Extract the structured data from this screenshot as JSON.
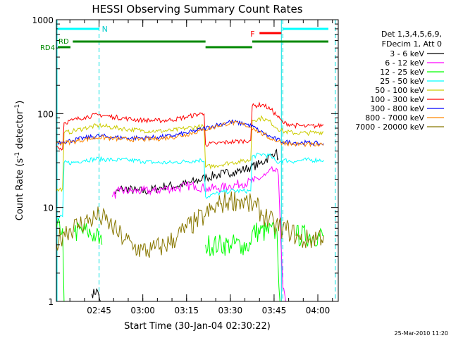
{
  "chart_data": {
    "type": "line",
    "title": "HESSI Observing Summary Count Rates",
    "xlabel": "Start Time (30-Jan-04 02:30:22)",
    "ylabel_parts": [
      "Count Rate (s",
      "-1",
      " detector",
      "-1",
      ")"
    ],
    "y_scale": "log",
    "ylim": [
      1,
      1000
    ],
    "xlim": [
      "02:30:22",
      "04:07:00"
    ],
    "x_ticks": [
      "02:45",
      "03:00",
      "03:15",
      "03:30",
      "03:45",
      "04:00"
    ],
    "y_ticks": [
      "1",
      "10",
      "100",
      "1000"
    ],
    "legend_position": "right",
    "legend_header": [
      "Det 1,3,4,5,6,9,",
      "FDecim 1, Att 0"
    ],
    "timestamp": "25-Mar-2010 11:20",
    "series": [
      {
        "name": "3 - 6 keV",
        "color": "#000000",
        "points": [
          [
            "02:30:22",
            null
          ],
          [
            "02:42:00",
            null
          ],
          [
            "02:42:30",
            1.2
          ],
          [
            "02:44:30",
            1.3
          ],
          [
            "02:45:30",
            1.0
          ],
          [
            "02:46:00",
            null
          ],
          [
            "02:50:00",
            null
          ],
          [
            "02:50:30",
            14
          ],
          [
            "02:53:00",
            16
          ],
          [
            "02:58:00",
            15
          ],
          [
            "03:02:00",
            15
          ],
          [
            "03:05:00",
            16
          ],
          [
            "03:08:00",
            17
          ],
          [
            "03:12:00",
            17
          ],
          [
            "03:15:00",
            18
          ],
          [
            "03:18:00",
            19
          ],
          [
            "03:22:00",
            21
          ],
          [
            "03:25:00",
            22
          ],
          [
            "03:28:00",
            23
          ],
          [
            "03:31:00",
            24
          ],
          [
            "03:34:00",
            25
          ],
          [
            "03:37:00",
            27
          ],
          [
            "03:40:00",
            29
          ],
          [
            "03:42:00",
            32
          ],
          [
            "03:44:00",
            36
          ],
          [
            "03:45:30",
            40
          ],
          [
            "03:46:30",
            33
          ],
          [
            "03:47:00",
            null
          ],
          [
            "04:07:00",
            null
          ]
        ]
      },
      {
        "name": "6 - 12 keV",
        "color": "#ff00ff",
        "points": [
          [
            "02:30:22",
            null
          ],
          [
            "02:49:00",
            null
          ],
          [
            "02:49:30",
            13
          ],
          [
            "02:52:00",
            15
          ],
          [
            "02:56:00",
            15
          ],
          [
            "03:00:00",
            15
          ],
          [
            "03:04:00",
            15
          ],
          [
            "03:08:00",
            16
          ],
          [
            "03:12:00",
            16
          ],
          [
            "03:15:00",
            17
          ],
          [
            "03:18:00",
            17
          ],
          [
            "03:21:00",
            16
          ],
          [
            "03:22:00",
            16
          ],
          [
            "03:26:00",
            16
          ],
          [
            "03:30:00",
            17
          ],
          [
            "03:34:00",
            18
          ],
          [
            "03:38:00",
            19
          ],
          [
            "03:42:00",
            22
          ],
          [
            "03:45:00",
            25
          ],
          [
            "03:46:30",
            22
          ],
          [
            "03:48:00",
            1.4
          ],
          [
            "03:49:00",
            1.0
          ],
          [
            "03:49:30",
            null
          ],
          [
            "04:07:00",
            null
          ]
        ]
      },
      {
        "name": "12 - 25 keV",
        "color": "#00ff00",
        "points": [
          [
            "02:30:22",
            6
          ],
          [
            "02:32:30",
            6
          ],
          [
            "02:33:00",
            1
          ],
          [
            "02:33:30",
            null
          ],
          [
            "02:36:00",
            null
          ],
          [
            "02:36:30",
            5.5
          ],
          [
            "02:41:00",
            5.5
          ],
          [
            "02:44:00",
            5
          ],
          [
            "02:46:00",
            4
          ],
          [
            "02:49:00",
            null
          ],
          [
            "03:21:00",
            null
          ],
          [
            "03:21:30",
            4
          ],
          [
            "03:26:00",
            4
          ],
          [
            "03:30:00",
            4
          ],
          [
            "03:34:00",
            4
          ],
          [
            "03:37:00",
            4
          ],
          [
            "03:37:30",
            5.5
          ],
          [
            "03:46:00",
            5.5
          ],
          [
            "03:47:00",
            1
          ],
          [
            "03:47:30",
            null
          ],
          [
            "03:52:00",
            null
          ],
          [
            "03:52:30",
            5
          ],
          [
            "04:02:00",
            5
          ]
        ]
      },
      {
        "name": "25 - 50 keV",
        "color": "#00ffff",
        "points": [
          [
            "02:30:22",
            7.5
          ],
          [
            "02:32:30",
            8
          ],
          [
            "02:33:00",
            30
          ],
          [
            "02:36:00",
            30
          ],
          [
            "02:40:00",
            32
          ],
          [
            "02:45:00",
            33
          ],
          [
            "02:50:00",
            32
          ],
          [
            "02:55:00",
            32
          ],
          [
            "03:00:00",
            31
          ],
          [
            "03:05:00",
            30
          ],
          [
            "03:10:00",
            30
          ],
          [
            "03:15:00",
            31
          ],
          [
            "03:20:00",
            32
          ],
          [
            "03:21:00",
            31
          ],
          [
            "03:21:30",
            13
          ],
          [
            "03:25:00",
            14
          ],
          [
            "03:30:00",
            15
          ],
          [
            "03:34:00",
            15
          ],
          [
            "03:37:00",
            15
          ],
          [
            "03:37:30",
            35
          ],
          [
            "03:41:00",
            37
          ],
          [
            "03:44:00",
            35
          ],
          [
            "03:46:00",
            30
          ],
          [
            "03:48:00",
            32
          ],
          [
            "03:52:00",
            31
          ],
          [
            "03:55:00",
            32
          ],
          [
            "04:00:00",
            32
          ],
          [
            "04:02:00",
            32
          ]
        ]
      },
      {
        "name": "50 - 100 keV",
        "color": "#cccc00",
        "points": [
          [
            "02:30:22",
            15
          ],
          [
            "02:32:30",
            16
          ],
          [
            "02:33:00",
            62
          ],
          [
            "02:36:00",
            65
          ],
          [
            "02:40:00",
            70
          ],
          [
            "02:45:00",
            75
          ],
          [
            "02:50:00",
            71
          ],
          [
            "02:55:00",
            68
          ],
          [
            "03:00:00",
            66
          ],
          [
            "03:05:00",
            65
          ],
          [
            "03:10:00",
            66
          ],
          [
            "03:15:00",
            70
          ],
          [
            "03:20:00",
            73
          ],
          [
            "03:21:00",
            72
          ],
          [
            "03:21:30",
            27
          ],
          [
            "03:25:00",
            28
          ],
          [
            "03:30:00",
            30
          ],
          [
            "03:34:00",
            31
          ],
          [
            "03:37:00",
            32
          ],
          [
            "03:37:30",
            85
          ],
          [
            "03:41:00",
            90
          ],
          [
            "03:44:00",
            80
          ],
          [
            "03:46:00",
            70
          ],
          [
            "03:48:00",
            65
          ],
          [
            "03:52:00",
            62
          ],
          [
            "03:56:00",
            62
          ],
          [
            "04:00:00",
            63
          ],
          [
            "04:02:00",
            64
          ]
        ]
      },
      {
        "name": "100 - 300 keV",
        "color": "#ff0000",
        "points": [
          [
            "02:30:22",
            45
          ],
          [
            "02:32:30",
            42
          ],
          [
            "02:33:00",
            80
          ],
          [
            "02:36:00",
            85
          ],
          [
            "02:40:00",
            92
          ],
          [
            "02:45:00",
            97
          ],
          [
            "02:50:00",
            92
          ],
          [
            "02:55:00",
            88
          ],
          [
            "03:00:00",
            85
          ],
          [
            "03:05:00",
            84
          ],
          [
            "03:10:00",
            86
          ],
          [
            "03:15:00",
            92
          ],
          [
            "03:20:00",
            100
          ],
          [
            "03:21:00",
            99
          ],
          [
            "03:21:30",
            47
          ],
          [
            "03:25:00",
            48
          ],
          [
            "03:30:00",
            50
          ],
          [
            "03:34:00",
            51
          ],
          [
            "03:37:00",
            52
          ],
          [
            "03:37:30",
            120
          ],
          [
            "03:41:00",
            125
          ],
          [
            "03:44:00",
            110
          ],
          [
            "03:46:00",
            95
          ],
          [
            "03:48:00",
            80
          ],
          [
            "03:52:00",
            75
          ],
          [
            "03:56:00",
            73
          ],
          [
            "04:00:00",
            74
          ],
          [
            "04:02:00",
            76
          ]
        ]
      },
      {
        "name": "300 - 800 keV",
        "color": "#0000ff",
        "points": [
          [
            "02:30:22",
            50
          ],
          [
            "02:33:00",
            50
          ],
          [
            "02:36:00",
            52
          ],
          [
            "02:40:00",
            55
          ],
          [
            "02:45:00",
            58
          ],
          [
            "02:50:00",
            56
          ],
          [
            "02:55:00",
            55
          ],
          [
            "03:00:00",
            55
          ],
          [
            "03:05:00",
            56
          ],
          [
            "03:10:00",
            58
          ],
          [
            "03:15:00",
            62
          ],
          [
            "03:20:00",
            68
          ],
          [
            "03:25:00",
            75
          ],
          [
            "03:30:00",
            82
          ],
          [
            "03:35:00",
            78
          ],
          [
            "03:38:00",
            72
          ],
          [
            "03:40:00",
            65
          ],
          [
            "03:44:00",
            56
          ],
          [
            "03:48:00",
            50
          ],
          [
            "03:52:00",
            49
          ],
          [
            "03:56:00",
            49
          ],
          [
            "04:00:00",
            48
          ],
          [
            "04:02:00",
            48
          ]
        ]
      },
      {
        "name": "800 - 7000 keV",
        "color": "#ff8800",
        "points": [
          [
            "02:30:22",
            48
          ],
          [
            "02:33:00",
            49
          ],
          [
            "02:36:00",
            50
          ],
          [
            "02:40:00",
            53
          ],
          [
            "02:45:00",
            56
          ],
          [
            "02:50:00",
            54
          ],
          [
            "02:55:00",
            53
          ],
          [
            "03:00:00",
            53
          ],
          [
            "03:05:00",
            54
          ],
          [
            "03:10:00",
            56
          ],
          [
            "03:15:00",
            60
          ],
          [
            "03:20:00",
            66
          ],
          [
            "03:25:00",
            73
          ],
          [
            "03:30:00",
            80
          ],
          [
            "03:35:00",
            76
          ],
          [
            "03:38:00",
            70
          ],
          [
            "03:40:00",
            63
          ],
          [
            "03:44:00",
            54
          ],
          [
            "03:48:00",
            49
          ],
          [
            "03:52:00",
            47
          ],
          [
            "03:56:00",
            47
          ],
          [
            "04:00:00",
            46
          ],
          [
            "04:02:00",
            46
          ]
        ]
      },
      {
        "name": "7000 - 20000 keV",
        "color": "#887700",
        "points": [
          [
            "02:30:22",
            4.2
          ],
          [
            "02:33:00",
            5.5
          ],
          [
            "02:38:00",
            6.5
          ],
          [
            "02:42:00",
            7.5
          ],
          [
            "02:45:00",
            8
          ],
          [
            "02:48:00",
            7
          ],
          [
            "02:51:00",
            5.5
          ],
          [
            "02:54:00",
            4.5
          ],
          [
            "02:57:00",
            3.8
          ],
          [
            "03:00:00",
            3.5
          ],
          [
            "03:03:00",
            3.5
          ],
          [
            "03:06:00",
            3.8
          ],
          [
            "03:09:00",
            4.2
          ],
          [
            "03:12:00",
            5
          ],
          [
            "03:15:00",
            6
          ],
          [
            "03:18:00",
            7
          ],
          [
            "03:21:00",
            8
          ],
          [
            "03:24:00",
            9.5
          ],
          [
            "03:27:00",
            11
          ],
          [
            "03:30:00",
            12
          ],
          [
            "03:33:00",
            12
          ],
          [
            "03:36:00",
            11
          ],
          [
            "03:39:00",
            10
          ],
          [
            "03:42:00",
            8
          ],
          [
            "03:45:00",
            6.5
          ],
          [
            "03:48:00",
            6
          ],
          [
            "03:51:00",
            5.5
          ],
          [
            "03:54:00",
            4.5
          ],
          [
            "03:57:00",
            4.5
          ],
          [
            "04:00:00",
            5
          ],
          [
            "04:02:00",
            5
          ]
        ]
      }
    ],
    "flags": {
      "N_label": "N",
      "F_label": "F",
      "RD_label": "RD",
      "RD4_label": "RD4"
    },
    "cyan_vlines_solid": [
      "02:30:22",
      "03:47:30"
    ],
    "cyan_vlines_dashed": [
      "02:45:00",
      "03:48:00",
      "04:06:00"
    ]
  }
}
